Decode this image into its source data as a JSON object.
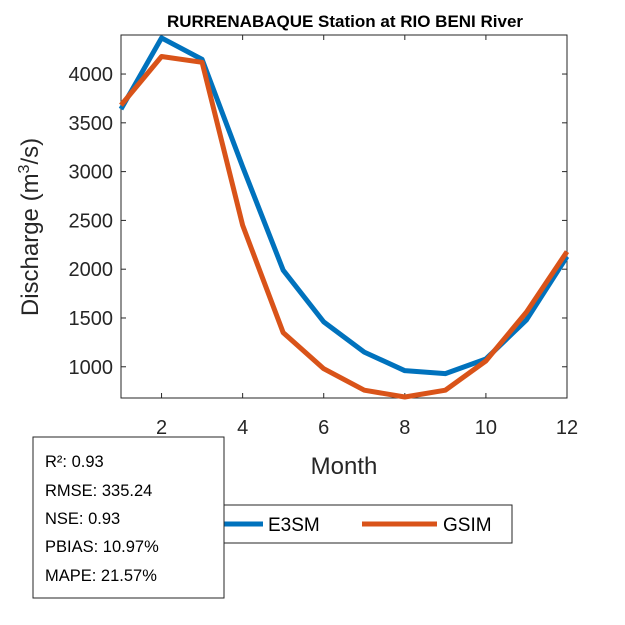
{
  "chart_data": {
    "type": "line",
    "title": "RURRENABAQUE  Station at  RIO BENI  River",
    "xlabel": "Month",
    "ylabel_main": "Discharge (m",
    "ylabel_sup": "3",
    "ylabel_end": "/s)",
    "xlim": [
      1,
      12
    ],
    "ylim": [
      680,
      4400
    ],
    "x": [
      1,
      2,
      3,
      4,
      5,
      6,
      7,
      8,
      9,
      10,
      11,
      12
    ],
    "xticks": [
      2,
      4,
      6,
      8,
      10,
      12
    ],
    "yticks": [
      1000,
      1500,
      2000,
      2500,
      3000,
      3500,
      4000
    ],
    "grid": false,
    "legend_placement": "bottom, horizontal",
    "series": [
      {
        "name": "E3SM",
        "color": "#0072BD",
        "values": [
          3640,
          4370,
          4150,
          3050,
          1990,
          1460,
          1150,
          960,
          930,
          1080,
          1480,
          2130
        ]
      },
      {
        "name": "GSIM",
        "color": "#D95319",
        "values": [
          3680,
          4180,
          4120,
          2450,
          1350,
          980,
          760,
          690,
          760,
          1060,
          1560,
          2180
        ]
      }
    ]
  },
  "stats": {
    "r2": "R²: 0.93",
    "rmse": "RMSE: 335.24",
    "nse": "NSE: 0.93",
    "pbias": "PBIAS: 10.97%",
    "mape": "MAPE: 21.57%"
  }
}
